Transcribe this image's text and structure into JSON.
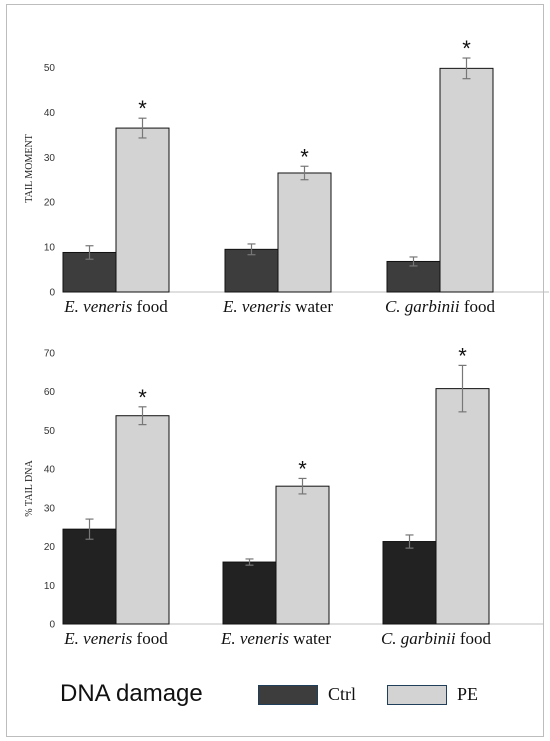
{
  "chart_data": [
    {
      "type": "bar",
      "categories": [
        {
          "italic": "E. veneris",
          "rest": " food"
        },
        {
          "italic": "E. veneris",
          "rest": " water"
        },
        {
          "italic": "C. garbinii",
          "rest": " food"
        }
      ],
      "ylabel": "TAIL MOMENT",
      "ylim": [
        0,
        55
      ],
      "yticks": [
        0,
        10,
        20,
        30,
        40,
        50
      ],
      "series": [
        {
          "name": "Ctrl",
          "values": [
            8.8,
            9.5,
            6.8
          ],
          "errors": [
            1.5,
            1.2,
            1.0
          ],
          "color": "#3d3d3d"
        },
        {
          "name": "PE",
          "values": [
            36.5,
            26.5,
            49.8
          ],
          "errors": [
            2.2,
            1.5,
            2.3
          ],
          "color": "#d3d3d3"
        }
      ],
      "significance": [
        "*",
        "*",
        "*"
      ]
    },
    {
      "type": "bar",
      "categories": [
        {
          "italic": "E. veneris",
          "rest": " food"
        },
        {
          "italic": "E. veneris",
          "rest": " water"
        },
        {
          "italic": "C. garbinii",
          "rest": " food"
        }
      ],
      "ylabel": "% TAIL DNA",
      "ylim": [
        0,
        70
      ],
      "yticks": [
        0,
        10,
        20,
        30,
        40,
        50,
        60,
        70
      ],
      "series": [
        {
          "name": "Ctrl",
          "values": [
            24.5,
            16.0,
            21.3
          ],
          "errors": [
            2.6,
            0.8,
            1.7
          ],
          "color": "#222222"
        },
        {
          "name": "PE",
          "values": [
            53.8,
            35.6,
            60.8
          ],
          "errors": [
            2.3,
            2.0,
            6.0
          ],
          "color": "#d3d3d3"
        }
      ],
      "significance": [
        "*",
        "*",
        "*"
      ]
    }
  ],
  "legend": {
    "title": "DNA damage",
    "items": [
      {
        "label": "Ctrl",
        "color": "#3d3d3d"
      },
      {
        "label": "PE",
        "color": "#d3d3d3"
      }
    ]
  }
}
